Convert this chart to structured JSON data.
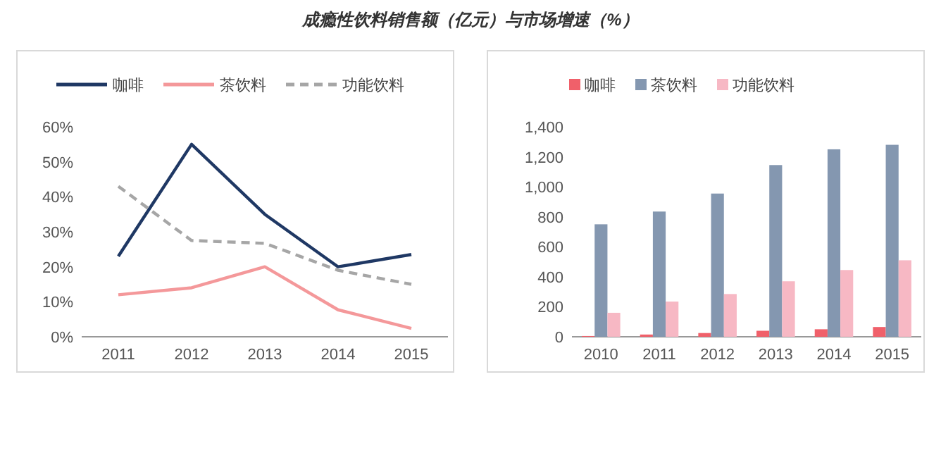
{
  "chart_data": [
    {
      "type": "line",
      "title": "成瘾性饮料销售额（亿元）与市场增速（%）",
      "legend": "top",
      "categories": [
        "2011",
        "2012",
        "2013",
        "2014",
        "2015"
      ],
      "ylim": [
        0,
        60
      ],
      "yticks": [
        {
          "value": 0,
          "label": "0%"
        },
        {
          "value": 10,
          "label": "10%"
        },
        {
          "value": 20,
          "label": "20%"
        },
        {
          "value": 30,
          "label": "30%"
        },
        {
          "value": 40,
          "label": "40%"
        },
        {
          "value": 50,
          "label": "50%"
        },
        {
          "value": 60,
          "label": "60%"
        }
      ],
      "series": [
        {
          "name": "咖啡",
          "color": "#1f3864",
          "line_style": "solid",
          "values": [
            23,
            55,
            35,
            20,
            23.5
          ]
        },
        {
          "name": "茶饮料",
          "color": "#f4989a",
          "line_style": "solid",
          "values": [
            12,
            14,
            20,
            7.7,
            2.4
          ]
        },
        {
          "name": "功能饮料",
          "color": "#a6a6a6",
          "line_style": "dashed",
          "values": [
            43,
            27.5,
            26.7,
            19,
            15
          ]
        }
      ]
    },
    {
      "type": "bar",
      "legend": "top",
      "categories": [
        "2010",
        "2011",
        "2012",
        "2013",
        "2014",
        "2015"
      ],
      "ylim": [
        0,
        1400
      ],
      "yticks": [
        0,
        200,
        400,
        600,
        800,
        {
          "value": 1000,
          "label": "1,000"
        },
        {
          "value": 1200,
          "label": "1,200"
        },
        {
          "value": 1400,
          "label": "1,400"
        }
      ],
      "series": [
        {
          "name": "咖啡",
          "color": "#f0606a",
          "values": [
            5,
            15,
            25,
            40,
            50,
            65
          ]
        },
        {
          "name": "茶饮料",
          "color": "#8497b0",
          "values": [
            750,
            835,
            955,
            1145,
            1250,
            1280
          ]
        },
        {
          "name": "功能饮料",
          "color": "#f7b8c4",
          "values": [
            160,
            235,
            285,
            370,
            445,
            510
          ]
        }
      ]
    }
  ]
}
